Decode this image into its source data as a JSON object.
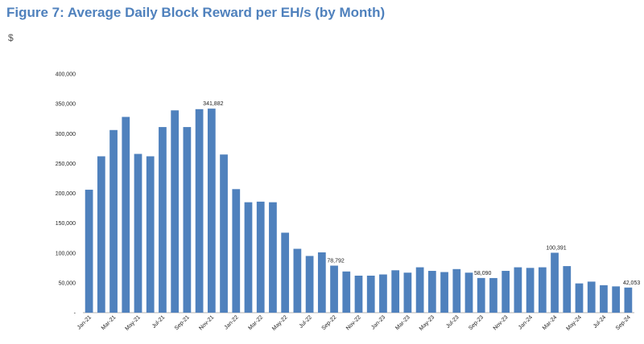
{
  "figure": {
    "title": "Figure 7: Average Daily Block Reward per EH/s (by Month)",
    "unit": "$"
  },
  "chart_data": {
    "type": "bar",
    "title": "Figure 7: Average Daily Block Reward per EH/s (by Month)",
    "ylabel": "$",
    "xlabel": "",
    "ylim": [
      0,
      400000
    ],
    "grid": false,
    "bar_color": "#4f81bd",
    "yticks": [
      0,
      50000,
      100000,
      150000,
      200000,
      250000,
      300000,
      350000,
      400000
    ],
    "ytick_labels": [
      "-",
      "50,000",
      "100,000",
      "150,000",
      "200,000",
      "250,000",
      "300,000",
      "350,000",
      "400,000"
    ],
    "categories": [
      "Jan-21",
      "Feb-21",
      "Mar-21",
      "Apr-21",
      "May-21",
      "Jun-21",
      "Jul-21",
      "Aug-21",
      "Sep-21",
      "Oct-21",
      "Nov-21",
      "Dec-21",
      "Jan-22",
      "Feb-22",
      "Mar-22",
      "Apr-22",
      "May-22",
      "Jun-22",
      "Jul-22",
      "Aug-22",
      "Sep-22",
      "Oct-22",
      "Nov-22",
      "Dec-22",
      "Jan-23",
      "Feb-23",
      "Mar-23",
      "Apr-23",
      "May-23",
      "Jun-23",
      "Jul-23",
      "Aug-23",
      "Sep-23",
      "Oct-23",
      "Nov-23",
      "Dec-23",
      "Jan-24",
      "Feb-24",
      "Mar-24",
      "Apr-24",
      "May-24",
      "Jun-24",
      "Jul-24",
      "Aug-24",
      "Sep-24"
    ],
    "xtick_labels": [
      "Jan-21",
      "Mar-21",
      "May-21",
      "Jul-21",
      "Sep-21",
      "Nov-21",
      "Jan-22",
      "Mar-22",
      "May-22",
      "Jul-22",
      "Sep-22",
      "Nov-22",
      "Jan-23",
      "Mar-23",
      "May-23",
      "Jul-23",
      "Sep-23",
      "Nov-23",
      "Jan-24",
      "Mar-24",
      "May-24",
      "Jul-24",
      "Sep-24"
    ],
    "values": [
      206000,
      262000,
      306000,
      328000,
      266000,
      262000,
      311000,
      339000,
      311000,
      341000,
      341882,
      265000,
      207000,
      185000,
      186000,
      185000,
      134000,
      107000,
      95000,
      101000,
      78792,
      69000,
      62000,
      62000,
      64000,
      71000,
      67000,
      76000,
      70000,
      68000,
      73000,
      67000,
      58090,
      58000,
      70000,
      76000,
      75000,
      76000,
      100391,
      78000,
      49000,
      52000,
      46000,
      44000,
      42053
    ],
    "data_labels": [
      {
        "category": "Nov-21",
        "text": "341,882"
      },
      {
        "category": "Sep-22",
        "text": "78,792"
      },
      {
        "category": "Sep-23",
        "text": "58,090"
      },
      {
        "category": "Mar-24",
        "text": "100,391"
      },
      {
        "category": "Sep-24",
        "text": "42,053"
      }
    ]
  }
}
